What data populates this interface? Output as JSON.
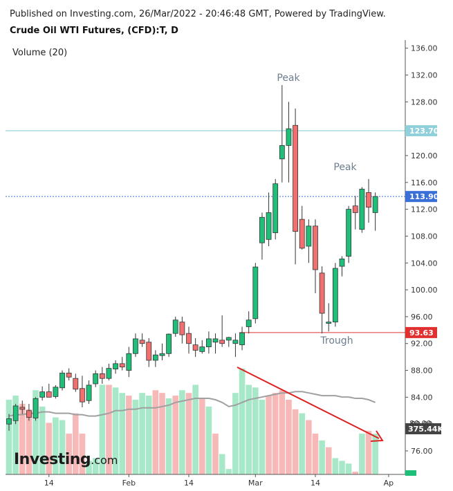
{
  "header": {
    "published": "Published on Investing.com, 26/Mar/2022 - 20:46:48 GMT, Powered by TradingView.",
    "instrument": "Crude Oil WTI Futures, (CFD):T, D"
  },
  "volume_label": "Volume (20)",
  "logo": {
    "main": "Investing",
    "suffix": ".com"
  },
  "colors": {
    "up": "#26a69a",
    "up_fill": "#1fbf7a",
    "down": "#ef5350",
    "down_fill": "#f07070",
    "vol_up": "#a6e8c8",
    "vol_down": "#f7b8b8",
    "ma": "#a0a0a0",
    "resistance": "#7ec8d3",
    "last": "#3a6fd8",
    "support": "#e03030",
    "arrow": "#e02020"
  },
  "chart_data": {
    "type": "candlestick",
    "y_axis": {
      "min": 72.5,
      "max": 137.2,
      "ticks": [
        "136.00",
        "132.00",
        "128.00",
        "124.00",
        "120.00",
        "116.00",
        "112.00",
        "108.00",
        "104.00",
        "100.00",
        "96.00",
        "92.00",
        "88.00",
        "84.00",
        "80.00",
        "76.00"
      ]
    },
    "x_ticks": [
      "14",
      "Feb",
      "14",
      "Mar",
      "14",
      "Ap"
    ],
    "candles": [
      {
        "o": 80.0,
        "h": 81.5,
        "l": 79.0,
        "c": 80.8
      },
      {
        "o": 80.5,
        "h": 83.0,
        "l": 80.0,
        "c": 82.7
      },
      {
        "o": 82.5,
        "h": 83.5,
        "l": 81.5,
        "c": 82.2
      },
      {
        "o": 82.0,
        "h": 83.0,
        "l": 80.5,
        "c": 81.0
      },
      {
        "o": 80.9,
        "h": 84.0,
        "l": 80.5,
        "c": 83.8
      },
      {
        "o": 84.0,
        "h": 85.6,
        "l": 83.5,
        "c": 84.8
      },
      {
        "o": 84.8,
        "h": 86.0,
        "l": 84.0,
        "c": 84.0
      },
      {
        "o": 84.1,
        "h": 85.8,
        "l": 83.8,
        "c": 85.5
      },
      {
        "o": 85.4,
        "h": 88.0,
        "l": 85.0,
        "c": 87.6
      },
      {
        "o": 87.6,
        "h": 88.3,
        "l": 86.5,
        "c": 87.0
      },
      {
        "o": 86.8,
        "h": 87.5,
        "l": 84.8,
        "c": 85.2
      },
      {
        "o": 85.3,
        "h": 87.2,
        "l": 82.5,
        "c": 83.3
      },
      {
        "o": 83.5,
        "h": 86.5,
        "l": 83.0,
        "c": 85.8
      },
      {
        "o": 86.0,
        "h": 88.0,
        "l": 85.5,
        "c": 87.5
      },
      {
        "o": 87.5,
        "h": 88.5,
        "l": 86.0,
        "c": 86.8
      },
      {
        "o": 86.8,
        "h": 89.0,
        "l": 86.5,
        "c": 88.3
      },
      {
        "o": 88.2,
        "h": 89.5,
        "l": 87.5,
        "c": 89.0
      },
      {
        "o": 89.0,
        "h": 90.0,
        "l": 88.0,
        "c": 88.5
      },
      {
        "o": 88.0,
        "h": 91.5,
        "l": 87.0,
        "c": 90.5
      },
      {
        "o": 90.5,
        "h": 93.5,
        "l": 90.0,
        "c": 92.7
      },
      {
        "o": 92.5,
        "h": 93.5,
        "l": 91.5,
        "c": 92.0
      },
      {
        "o": 92.2,
        "h": 92.8,
        "l": 88.5,
        "c": 89.5
      },
      {
        "o": 89.5,
        "h": 91.0,
        "l": 88.5,
        "c": 90.3
      },
      {
        "o": 90.2,
        "h": 92.0,
        "l": 89.5,
        "c": 90.5
      },
      {
        "o": 90.5,
        "h": 93.5,
        "l": 90.0,
        "c": 93.4
      },
      {
        "o": 93.5,
        "h": 96.0,
        "l": 93.0,
        "c": 95.5
      },
      {
        "o": 95.2,
        "h": 96.0,
        "l": 92.0,
        "c": 93.3
      },
      {
        "o": 93.5,
        "h": 94.5,
        "l": 90.5,
        "c": 92.0
      },
      {
        "o": 91.8,
        "h": 92.8,
        "l": 90.0,
        "c": 91.0
      },
      {
        "o": 90.8,
        "h": 92.5,
        "l": 90.5,
        "c": 91.5
      },
      {
        "o": 91.5,
        "h": 93.8,
        "l": 90.5,
        "c": 92.7
      },
      {
        "o": 92.2,
        "h": 93.5,
        "l": 90.5,
        "c": 92.7
      },
      {
        "o": 92.5,
        "h": 96.2,
        "l": 91.5,
        "c": 92.0
      },
      {
        "o": 92.5,
        "h": 93.0,
        "l": 91.5,
        "c": 92.9
      },
      {
        "o": 92.0,
        "h": 93.5,
        "l": 90.0,
        "c": 92.5
      },
      {
        "o": 91.8,
        "h": 94.5,
        "l": 91.0,
        "c": 93.6
      },
      {
        "o": 94.5,
        "h": 96.8,
        "l": 93.5,
        "c": 95.5
      },
      {
        "o": 95.7,
        "h": 104.0,
        "l": 95.0,
        "c": 103.4
      },
      {
        "o": 107.0,
        "h": 111.5,
        "l": 104.5,
        "c": 110.8
      },
      {
        "o": 107.5,
        "h": 114.5,
        "l": 106.5,
        "c": 111.5
      },
      {
        "o": 108.5,
        "h": 116.5,
        "l": 107.5,
        "c": 115.8
      },
      {
        "o": 119.5,
        "h": 130.5,
        "l": 116.0,
        "c": 121.5
      },
      {
        "o": 121.5,
        "h": 128.0,
        "l": 116.0,
        "c": 124.0
      },
      {
        "o": 124.5,
        "h": 127.0,
        "l": 103.8,
        "c": 108.7
      },
      {
        "o": 110.5,
        "h": 112.5,
        "l": 106.0,
        "c": 106.2
      },
      {
        "o": 106.5,
        "h": 110.5,
        "l": 104.0,
        "c": 109.5
      },
      {
        "o": 109.5,
        "h": 110.5,
        "l": 99.5,
        "c": 103.0
      },
      {
        "o": 102.5,
        "h": 103.5,
        "l": 93.5,
        "c": 96.5
      },
      {
        "o": 95.0,
        "h": 98.0,
        "l": 93.8,
        "c": 95.2
      },
      {
        "o": 95.2,
        "h": 104.0,
        "l": 94.5,
        "c": 103.2
      },
      {
        "o": 103.5,
        "h": 105.0,
        "l": 102.0,
        "c": 104.6
      },
      {
        "o": 105.0,
        "h": 112.5,
        "l": 104.0,
        "c": 112.0
      },
      {
        "o": 112.5,
        "h": 114.0,
        "l": 109.0,
        "c": 111.5
      },
      {
        "o": 109.0,
        "h": 115.3,
        "l": 108.5,
        "c": 115.0
      },
      {
        "o": 114.5,
        "h": 116.5,
        "l": 110.0,
        "c": 112.3
      },
      {
        "o": 111.5,
        "h": 114.5,
        "l": 108.8,
        "c": 113.9
      }
    ],
    "volume": [
      {
        "v": 0.55,
        "up": true
      },
      {
        "v": 0.58,
        "up": true
      },
      {
        "v": 0.52,
        "up": false
      },
      {
        "v": 0.48,
        "up": false
      },
      {
        "v": 0.62,
        "up": true
      },
      {
        "v": 0.5,
        "up": true
      },
      {
        "v": 0.38,
        "up": false
      },
      {
        "v": 0.42,
        "up": true
      },
      {
        "v": 0.4,
        "up": true
      },
      {
        "v": 0.3,
        "up": false
      },
      {
        "v": 0.45,
        "up": false
      },
      {
        "v": 0.3,
        "up": false
      },
      {
        "v": 0.1,
        "up": true
      },
      {
        "v": 0.12,
        "up": true
      },
      {
        "v": 0.66,
        "up": true
      },
      {
        "v": 0.66,
        "up": false
      },
      {
        "v": 0.64,
        "up": true
      },
      {
        "v": 0.6,
        "up": true
      },
      {
        "v": 0.58,
        "up": false
      },
      {
        "v": 0.55,
        "up": true
      },
      {
        "v": 0.6,
        "up": true
      },
      {
        "v": 0.58,
        "up": true
      },
      {
        "v": 0.62,
        "up": false
      },
      {
        "v": 0.6,
        "up": false
      },
      {
        "v": 0.56,
        "up": true
      },
      {
        "v": 0.58,
        "up": false
      },
      {
        "v": 0.62,
        "up": true
      },
      {
        "v": 0.6,
        "up": false
      },
      {
        "v": 0.66,
        "up": true
      },
      {
        "v": 0.56,
        "up": false
      },
      {
        "v": 0.5,
        "up": true
      },
      {
        "v": 0.3,
        "up": false
      },
      {
        "v": 0.15,
        "up": true
      },
      {
        "v": 0.04,
        "up": true
      },
      {
        "v": 0.6,
        "up": true
      },
      {
        "v": 0.78,
        "up": true
      },
      {
        "v": 0.66,
        "up": true
      },
      {
        "v": 0.64,
        "up": true
      },
      {
        "v": 0.55,
        "up": true
      },
      {
        "v": 0.58,
        "up": false
      },
      {
        "v": 0.6,
        "up": false
      },
      {
        "v": 0.62,
        "up": false
      },
      {
        "v": 0.55,
        "up": false
      },
      {
        "v": 0.48,
        "up": false
      },
      {
        "v": 0.45,
        "up": true
      },
      {
        "v": 0.4,
        "up": false
      },
      {
        "v": 0.3,
        "up": false
      },
      {
        "v": 0.25,
        "up": true
      },
      {
        "v": 0.2,
        "up": false
      },
      {
        "v": 0.12,
        "up": true
      },
      {
        "v": 0.1,
        "up": true
      },
      {
        "v": 0.08,
        "up": true
      },
      {
        "v": 0.02,
        "up": false
      },
      {
        "v": 0.3,
        "up": true
      },
      {
        "v": 0.32,
        "up": false
      },
      {
        "v": 0.3,
        "up": true
      }
    ],
    "volume_ma": [
      0.43,
      0.44,
      0.44,
      0.45,
      0.45,
      0.46,
      0.46,
      0.45,
      0.45,
      0.45,
      0.44,
      0.44,
      0.43,
      0.43,
      0.44,
      0.45,
      0.47,
      0.47,
      0.48,
      0.48,
      0.49,
      0.49,
      0.49,
      0.5,
      0.51,
      0.53,
      0.54,
      0.55,
      0.56,
      0.56,
      0.56,
      0.55,
      0.53,
      0.5,
      0.51,
      0.53,
      0.55,
      0.56,
      0.57,
      0.58,
      0.59,
      0.6,
      0.6,
      0.61,
      0.61,
      0.6,
      0.59,
      0.58,
      0.58,
      0.58,
      0.57,
      0.57,
      0.56,
      0.56,
      0.55,
      0.53
    ],
    "levels": {
      "resistance": {
        "value": 123.7,
        "label": "123.70"
      },
      "last": {
        "value": 113.9,
        "label": "113.90"
      },
      "support": {
        "value": 93.63,
        "label": "93.63"
      },
      "volume_last_label": "375.44K",
      "volume_ma_label": "80.00"
    },
    "annotations": [
      {
        "text": "Peak",
        "at": "peak-1"
      },
      {
        "text": "Peak",
        "at": "peak-2"
      },
      {
        "text": "Trough",
        "at": "trough"
      }
    ]
  }
}
